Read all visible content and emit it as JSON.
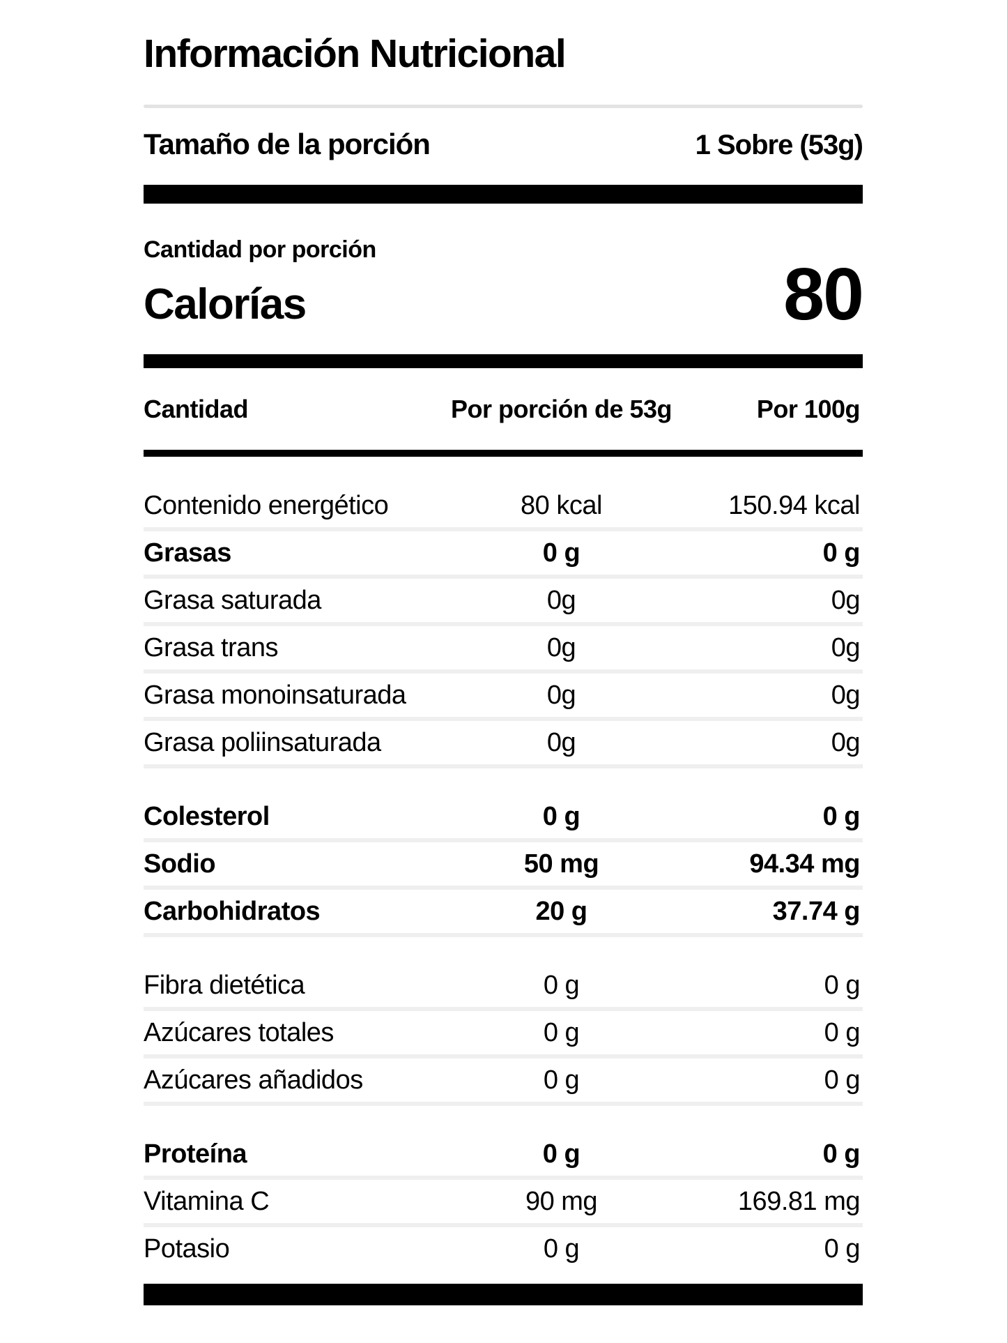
{
  "label": {
    "title": "Información Nutricional",
    "serving": {
      "label": "Tamaño de la porción",
      "value": "1 Sobre (53g)"
    },
    "calories": {
      "eyebrow": "Cantidad por porción",
      "label": "Calorías",
      "value": "80"
    },
    "table": {
      "headers": {
        "amount": "Cantidad",
        "per_serving": "Por porción de 53g",
        "per_100g": "Por 100g"
      },
      "groups": [
        {
          "rows": [
            {
              "name": "Contenido energético",
              "per_serving": "80 kcal",
              "per_100g": "150.94 kcal",
              "bold": false
            },
            {
              "name": "Grasas",
              "per_serving": "0 g",
              "per_100g": "0 g",
              "bold": true
            },
            {
              "name": "Grasa saturada",
              "per_serving": "0g",
              "per_100g": "0g",
              "bold": false
            },
            {
              "name": "Grasa trans",
              "per_serving": "0g",
              "per_100g": "0g",
              "bold": false
            },
            {
              "name": "Grasa monoinsaturada",
              "per_serving": "0g",
              "per_100g": "0g",
              "bold": false
            },
            {
              "name": "Grasa poliinsaturada",
              "per_serving": "0g",
              "per_100g": "0g",
              "bold": false
            }
          ]
        },
        {
          "rows": [
            {
              "name": "Colesterol",
              "per_serving": "0 g",
              "per_100g": "0 g",
              "bold": true
            },
            {
              "name": "Sodio",
              "per_serving": "50 mg",
              "per_100g": "94.34 mg",
              "bold": true
            },
            {
              "name": "Carbohidratos",
              "per_serving": "20 g",
              "per_100g": "37.74 g",
              "bold": true
            }
          ]
        },
        {
          "rows": [
            {
              "name": "Fibra dietética",
              "per_serving": "0 g",
              "per_100g": "0 g",
              "bold": false
            },
            {
              "name": "Azúcares totales",
              "per_serving": "0 g",
              "per_100g": "0 g",
              "bold": false
            },
            {
              "name": "Azúcares añadidos",
              "per_serving": "0 g",
              "per_100g": "0 g",
              "bold": false
            }
          ]
        },
        {
          "rows": [
            {
              "name": "Proteína",
              "per_serving": "0 g",
              "per_100g": "0 g",
              "bold": true
            },
            {
              "name": "Vitamina C",
              "per_serving": "90 mg",
              "per_100g": "169.81 mg",
              "bold": false
            },
            {
              "name": "Potasio",
              "per_serving": "0 g",
              "per_100g": "0 g",
              "bold": false
            }
          ]
        }
      ]
    },
    "colors": {
      "text": "#000000",
      "bar": "#000000",
      "title_divider": "#e3e3e3",
      "row_separator": "#efefef",
      "background": "#ffffff"
    }
  }
}
